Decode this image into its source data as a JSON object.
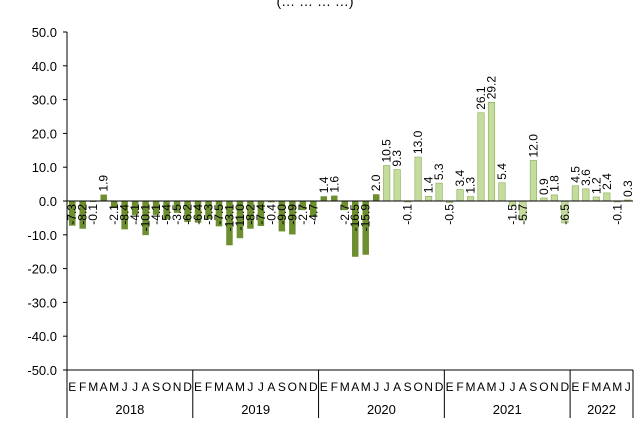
{
  "chart_data": {
    "type": "bar",
    "title": "(… … … …)",
    "ylim": [
      -50,
      50
    ],
    "yticks": [
      "50.0",
      "40.0",
      "30.0",
      "20.0",
      "10.0",
      "0.0",
      "-10.0",
      "-20.0",
      "-30.0",
      "-40.0",
      "-50.0"
    ],
    "grid": false,
    "legend": "none",
    "month_labels": [
      "E",
      "F",
      "M",
      "A",
      "M",
      "J",
      "J",
      "A",
      "S",
      "O",
      "N",
      "D",
      "E",
      "F",
      "M",
      "A",
      "M",
      "J",
      "J",
      "A",
      "S",
      "O",
      "N",
      "D",
      "E",
      "F",
      "M",
      "A",
      "M",
      "J",
      "J",
      "A",
      "S",
      "O",
      "N",
      "D",
      "E",
      "F",
      "M",
      "A",
      "M",
      "J",
      "J",
      "A",
      "S",
      "O",
      "N",
      "D",
      "E",
      "F",
      "M",
      "A",
      "M",
      "J"
    ],
    "years": [
      "2018",
      "2019",
      "2020",
      "2021",
      "2022"
    ],
    "values": [
      -7.3,
      -8.2,
      -0.1,
      1.9,
      -2.1,
      -8.4,
      -4.1,
      -10.1,
      -4.1,
      -5.4,
      -3.5,
      -6.2,
      -6.4,
      -5.3,
      -7.5,
      -13.1,
      -11.0,
      -8.2,
      -7.4,
      -0.4,
      -9.0,
      -9.9,
      -2.7,
      -4.7,
      1.4,
      1.6,
      -2.7,
      -16.5,
      -15.9,
      2.0,
      10.5,
      9.3,
      -0.1,
      13.0,
      1.4,
      5.3,
      -0.5,
      3.4,
      1.3,
      26.1,
      29.2,
      5.4,
      -1.5,
      -5.7,
      12.0,
      0.9,
      1.8,
      -6.5,
      4.5,
      3.6,
      1.2,
      2.4,
      -0.1,
      0.3
    ],
    "colors": {
      "before_2020_jul": "#6e8f2f",
      "from_2020_jul": "#c4dc9e",
      "light_edge": "#8aab55"
    }
  }
}
